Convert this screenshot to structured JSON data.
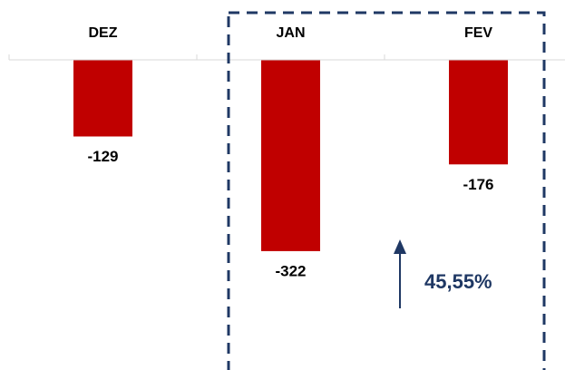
{
  "chart_data": {
    "type": "bar",
    "categories": [
      "DEZ",
      "JAN",
      "FEV"
    ],
    "values": [
      -129,
      -322,
      -176
    ],
    "color": "#c00000",
    "ylim": [
      -520,
      0
    ],
    "annotation": "45,55%"
  }
}
